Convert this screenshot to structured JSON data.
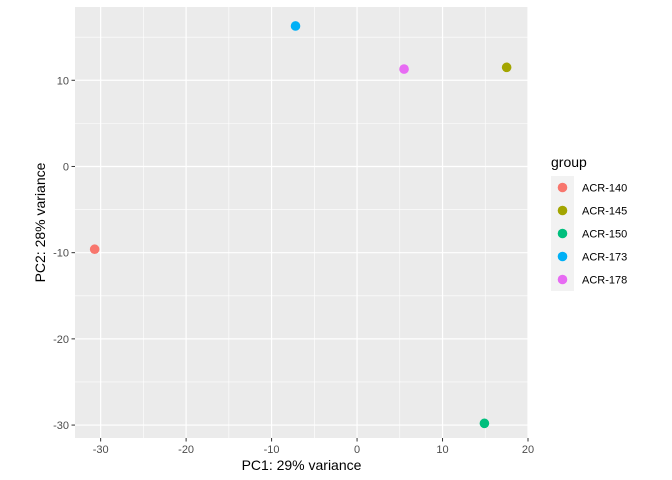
{
  "chart_data": {
    "type": "scatter",
    "xlabel": "PC1: 29% variance",
    "ylabel": "PC2: 28% variance",
    "xlim": [
      -33,
      20
    ],
    "ylim": [
      -31.5,
      18.5
    ],
    "x_ticks": [
      -30,
      -20,
      -10,
      0,
      10,
      20
    ],
    "y_ticks": [
      -30,
      -20,
      -10,
      0,
      10
    ],
    "grid": true,
    "legend": {
      "title": "group",
      "placement": "right"
    },
    "series": [
      {
        "name": "ACR-140",
        "color": "#F8766D",
        "points": [
          {
            "x": -30.7,
            "y": -9.6
          }
        ]
      },
      {
        "name": "ACR-145",
        "color": "#A3A500",
        "points": [
          {
            "x": 17.5,
            "y": 11.5
          }
        ]
      },
      {
        "name": "ACR-150",
        "color": "#00BF7D",
        "points": [
          {
            "x": 14.9,
            "y": -29.8
          }
        ]
      },
      {
        "name": "ACR-173",
        "color": "#00B0F6",
        "points": [
          {
            "x": -7.2,
            "y": 16.3
          }
        ]
      },
      {
        "name": "ACR-178",
        "color": "#E76BF3",
        "points": [
          {
            "x": 5.5,
            "y": 11.3
          }
        ]
      }
    ]
  }
}
